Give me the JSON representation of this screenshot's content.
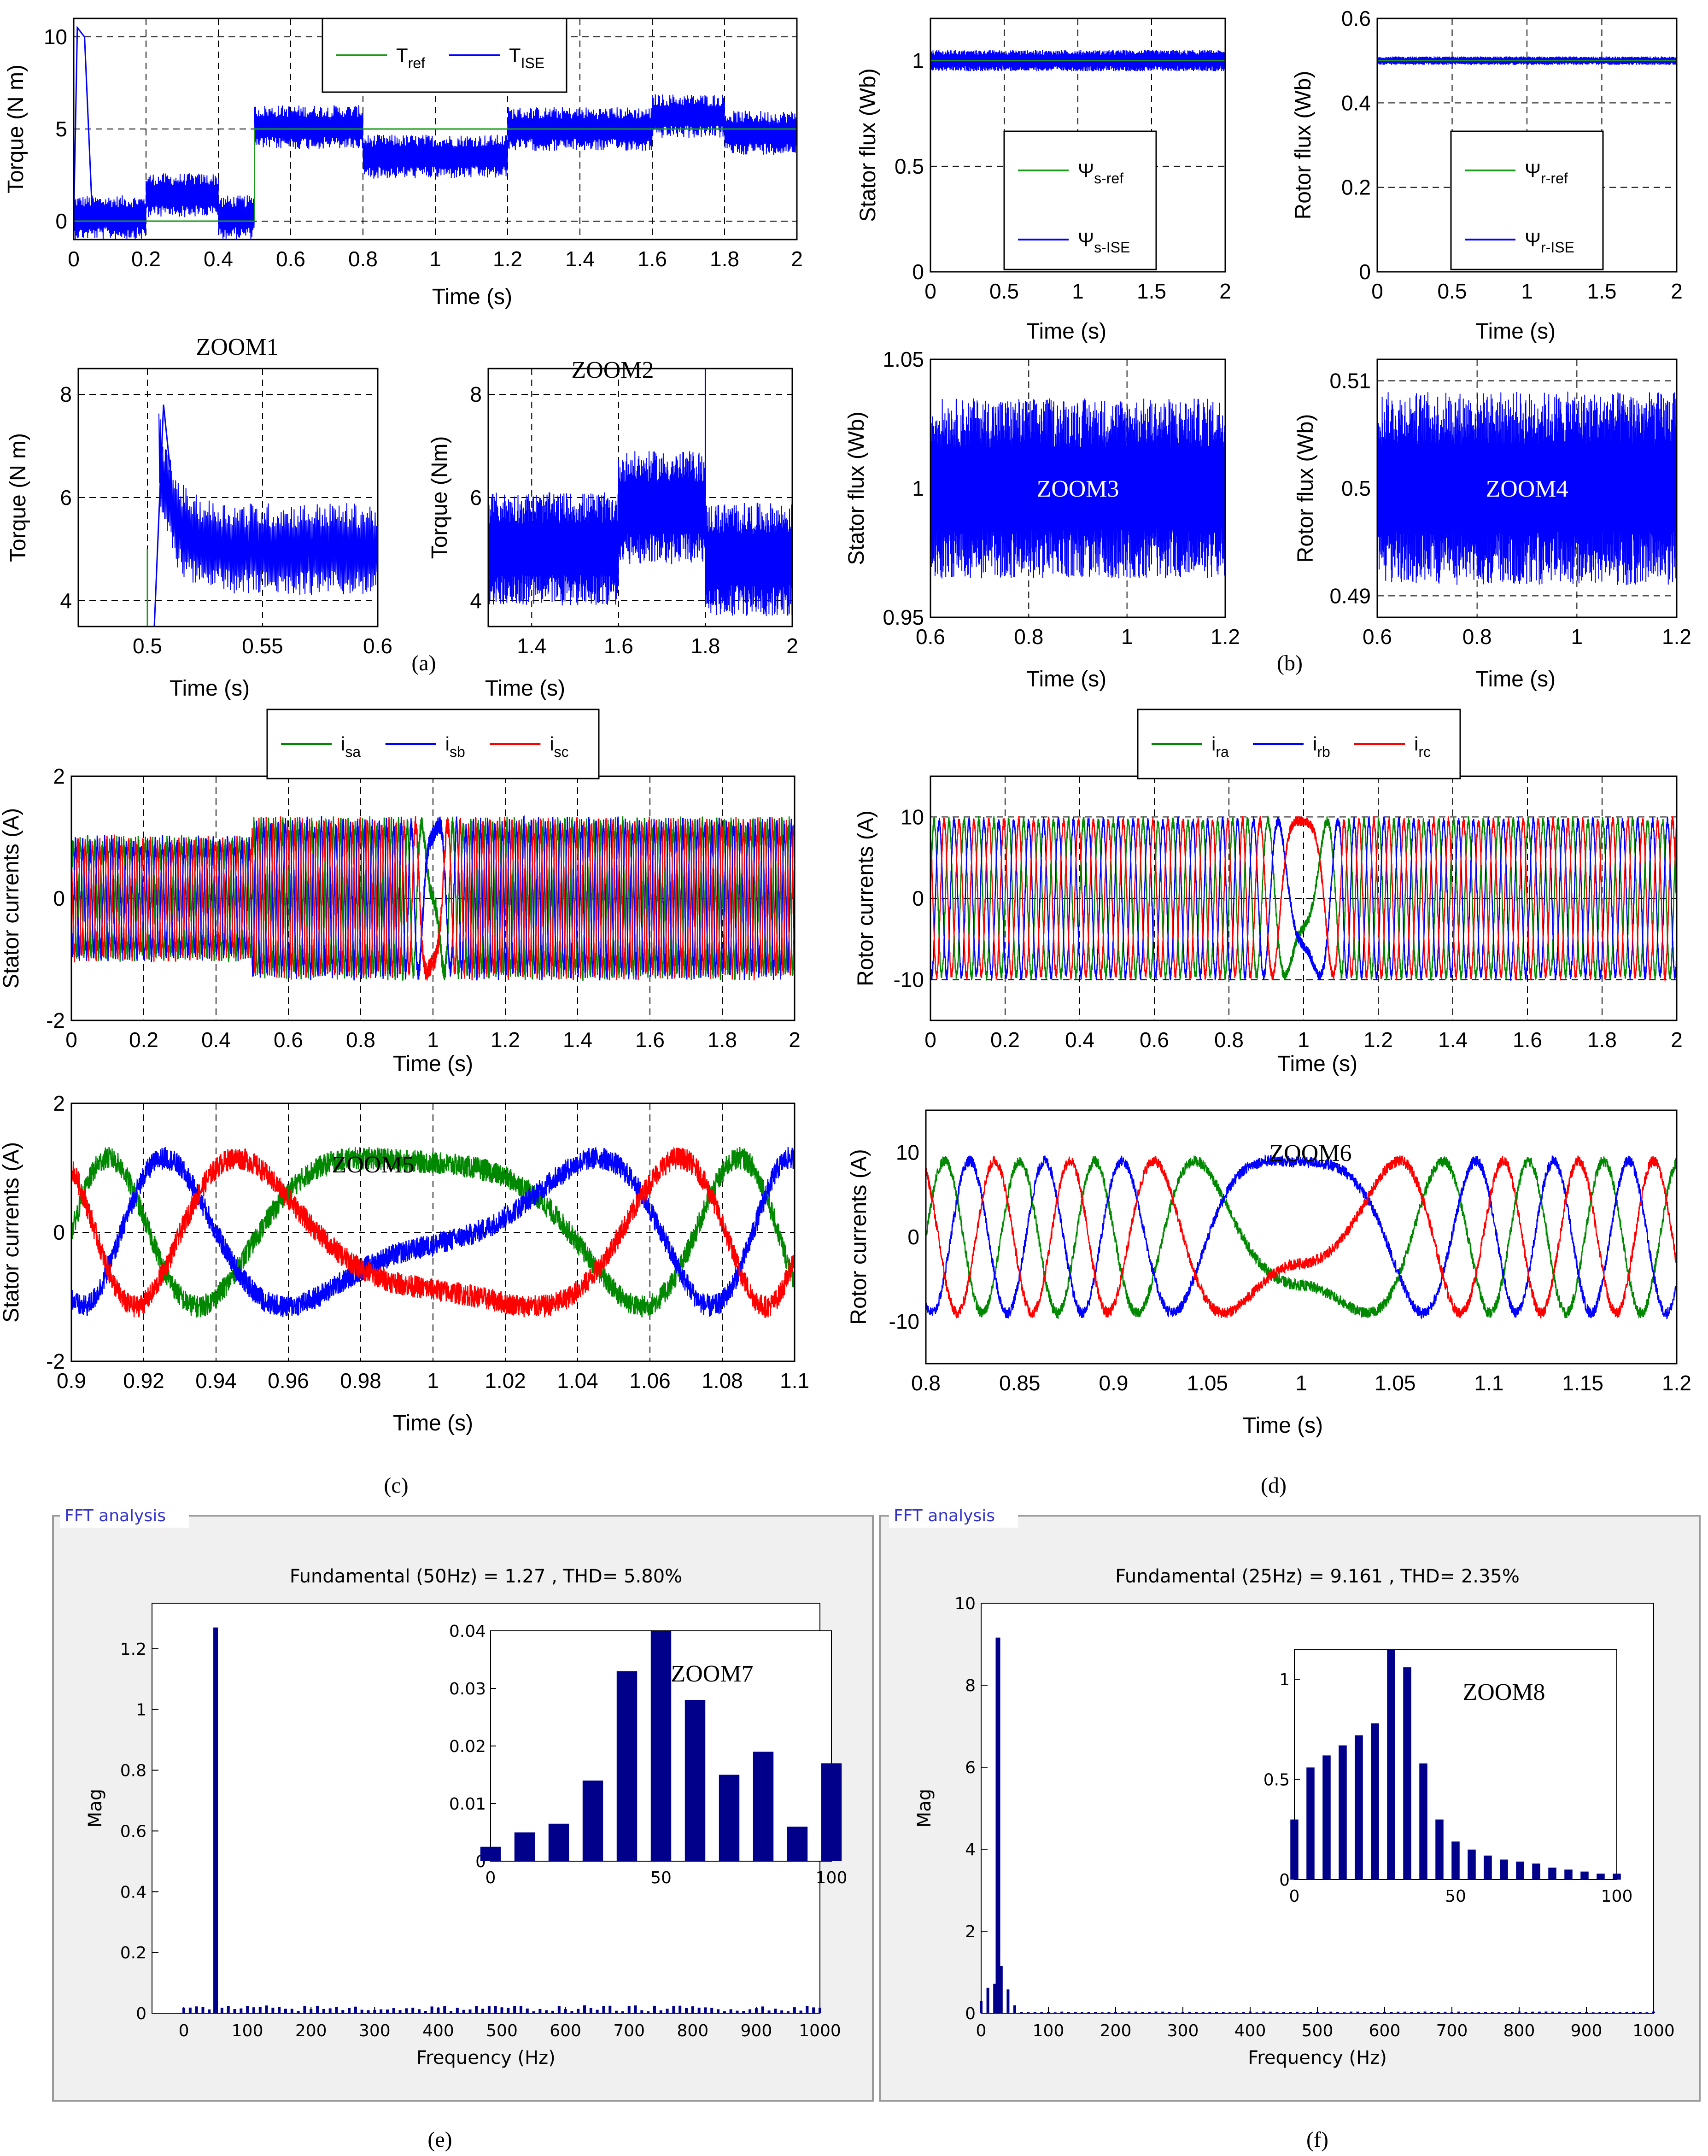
{
  "colors": {
    "ref_green": "#1a9a1a",
    "blue": "#0000ff",
    "red": "#ff0000",
    "green": "#008800",
    "fft_bar": "#00008b",
    "fft_panel_bg": "#f0f0f0",
    "fft_panel_border": "#9a9a9a",
    "fft_label": "#3333cc"
  },
  "panel_captions": [
    "(a)",
    "(b)",
    "(c)",
    "(d)",
    "(e)",
    "(f)"
  ],
  "chart_data": [
    {
      "id": "torque",
      "type": "line",
      "ylabel": "Torque (N m)",
      "xlabel": "Time (s)",
      "xlim": [
        0,
        2
      ],
      "ylim": [
        -1,
        11
      ],
      "xticks": [
        "0",
        "0.2",
        "0.4",
        "0.6",
        "0.8",
        "1",
        "1.2",
        "1.4",
        "1.6",
        "1.8",
        "2"
      ],
      "yticks": [
        "0",
        "5",
        "10"
      ],
      "legend": [
        "T_ref",
        "T_ISE"
      ],
      "series": [
        {
          "name": "T_ref",
          "x": [
            0,
            0.5,
            0.5,
            0.8,
            0.8,
            1.2,
            1.2,
            1.6,
            1.6,
            1.8,
            1.8,
            2
          ],
          "values": [
            0,
            0,
            5,
            5,
            5,
            5,
            5,
            5,
            5,
            5,
            5,
            5
          ]
        },
        {
          "name": "T_ISE",
          "segments": [
            {
              "x": [
                0,
                0.2
              ],
              "center": 0.2,
              "ripple": 1.2
            },
            {
              "x": [
                0.2,
                0.4
              ],
              "center": 1.4,
              "ripple": 1.2
            },
            {
              "x": [
                0.4,
                0.5
              ],
              "center": 0.2,
              "ripple": 1.2
            },
            {
              "x": [
                0.5,
                0.8
              ],
              "center": 5.1,
              "ripple": 1.2
            },
            {
              "x": [
                0.8,
                1.2
              ],
              "center": 3.5,
              "ripple": 1.2
            },
            {
              "x": [
                1.2,
                1.6
              ],
              "center": 5.0,
              "ripple": 1.2
            },
            {
              "x": [
                1.6,
                1.8
              ],
              "center": 5.7,
              "ripple": 1.2
            },
            {
              "x": [
                1.8,
                2.0
              ],
              "center": 4.8,
              "ripple": 1.2
            }
          ]
        }
      ]
    },
    {
      "id": "stator_flux",
      "type": "line",
      "ylabel": "Stator flux (Wb)",
      "xlabel": "Time (s)",
      "xlim": [
        0,
        2
      ],
      "ylim": [
        0,
        1.2
      ],
      "xticks": [
        "0",
        "0.5",
        "1",
        "1.5",
        "2"
      ],
      "yticks": [
        "0",
        "0.5",
        "1"
      ],
      "legend": [
        "Ψ_s-ref",
        "Ψ_s-ISE"
      ],
      "series": [
        {
          "name": "Ψ_s-ref",
          "values": [
            1,
            1
          ]
        },
        {
          "name": "Ψ_s-ISE",
          "center": 1.0,
          "ripple": 0.05
        }
      ]
    },
    {
      "id": "rotor_flux",
      "type": "line",
      "ylabel": "Rotor flux (Wb)",
      "xlabel": "Time (s)",
      "xlim": [
        0,
        2
      ],
      "ylim": [
        0,
        0.6
      ],
      "xticks": [
        "0",
        "0.5",
        "1",
        "1.5",
        "2"
      ],
      "yticks": [
        "0",
        "0.2",
        "0.4",
        "0.6"
      ],
      "legend": [
        "Ψ_r-ref",
        "Ψ_r-ISE"
      ],
      "series": [
        {
          "name": "Ψ_r-ref",
          "values": [
            0.5,
            0.5
          ]
        },
        {
          "name": "Ψ_r-ISE",
          "center": 0.5,
          "ripple": 0.01
        }
      ]
    },
    {
      "id": "zoom1",
      "type": "line",
      "title": "ZOOM1",
      "ylabel": "Torque (N m)",
      "xlabel": "Time (s)",
      "xlim": [
        0.47,
        0.6
      ],
      "ylim": [
        3.5,
        8.5
      ],
      "xticks": [
        "0.5",
        "0.55",
        "0.6"
      ],
      "yticks": [
        "4",
        "6",
        "8"
      ],
      "series": [
        {
          "name": "T_ISE",
          "center": 5.0,
          "ripple": 1.0
        }
      ]
    },
    {
      "id": "zoom2",
      "type": "line",
      "title": "ZOOM2",
      "ylabel": "Torque (Nm)",
      "xlabel": "Time (s)",
      "xlim": [
        1.3,
        2
      ],
      "ylim": [
        3.5,
        8.5
      ],
      "xticks": [
        "1.4",
        "1.6",
        "1.8",
        "2"
      ],
      "yticks": [
        "4",
        "6",
        "8"
      ],
      "series": [
        {
          "name": "T_ISE",
          "center": 5.2,
          "ripple": 1.2
        }
      ]
    },
    {
      "id": "zoom3",
      "type": "line",
      "title": "ZOOM3",
      "ylabel": "Stator flux (Wb)",
      "xlabel": "Time (s)",
      "xlim": [
        0.6,
        1.2
      ],
      "ylim": [
        0.95,
        1.05
      ],
      "xticks": [
        "0.6",
        "0.8",
        "1",
        "1.2"
      ],
      "yticks": [
        "0.95",
        "1",
        "1.05"
      ],
      "series": [
        {
          "name": "Ψ_s-ISE",
          "center": 1.0,
          "ripple": 0.035
        }
      ]
    },
    {
      "id": "zoom4",
      "type": "line",
      "title": "ZOOM4",
      "ylabel": "Rotor flux (Wb)",
      "xlabel": "Time (s)",
      "xlim": [
        0.6,
        1.2
      ],
      "ylim": [
        0.488,
        0.512
      ],
      "xticks": [
        "0.6",
        "0.8",
        "1",
        "1.2"
      ],
      "yticks": [
        "0.49",
        "0.5",
        "0.51"
      ],
      "series": [
        {
          "name": "Ψ_r-ISE",
          "center": 0.5,
          "ripple": 0.009
        }
      ]
    },
    {
      "id": "stator_currents",
      "type": "line",
      "ylabel": "Stator currents (A)",
      "xlabel": "Time (s)",
      "xlim": [
        0,
        2
      ],
      "ylim": [
        -2,
        2
      ],
      "xticks": [
        "0",
        "0.2",
        "0.4",
        "0.6",
        "0.8",
        "1",
        "1.2",
        "1.4",
        "1.6",
        "1.8",
        "2"
      ],
      "yticks": [
        "-2",
        "0",
        "2"
      ],
      "legend": [
        "i_sa",
        "i_sb",
        "i_sc"
      ],
      "series": [
        {
          "name": "i_sa",
          "amplitude": 1.2
        },
        {
          "name": "i_sb",
          "amplitude": 1.2
        },
        {
          "name": "i_sc",
          "amplitude": 1.2
        }
      ]
    },
    {
      "id": "rotor_currents",
      "type": "line",
      "ylabel": "Rotor currents (A)",
      "xlabel": "Time (s)",
      "xlim": [
        0,
        2
      ],
      "ylim": [
        -15,
        15
      ],
      "xticks": [
        "0",
        "0.2",
        "0.4",
        "0.6",
        "0.8",
        "1",
        "1.2",
        "1.4",
        "1.6",
        "1.8",
        "2"
      ],
      "yticks": [
        "-10",
        "0",
        "10"
      ],
      "legend": [
        "i_ra",
        "i_rb",
        "i_rc"
      ],
      "series": [
        {
          "name": "i_ra",
          "amplitude": 9.5
        },
        {
          "name": "i_rb",
          "amplitude": 9.5
        },
        {
          "name": "i_rc",
          "amplitude": 9.5
        }
      ]
    },
    {
      "id": "zoom5",
      "type": "line",
      "title": "ZOOM5",
      "ylabel": "Stator currents (A)",
      "xlabel": "Time (s)",
      "xlim": [
        0.9,
        1.1
      ],
      "ylim": [
        -2,
        2
      ],
      "xticks": [
        "0.9",
        "0.92",
        "0.94",
        "0.96",
        "0.98",
        "1",
        "1.02",
        "1.04",
        "1.06",
        "1.08",
        "1.1"
      ],
      "yticks": [
        "-2",
        "0",
        "2"
      ],
      "series": [
        {
          "name": "i_sa",
          "amplitude": 1.2
        },
        {
          "name": "i_sb",
          "amplitude": 1.2
        },
        {
          "name": "i_sc",
          "amplitude": 1.2
        }
      ]
    },
    {
      "id": "zoom6",
      "type": "line",
      "title": "ZOOM6",
      "ylabel": "Rotor currents (A)",
      "xlabel": "Time (s)",
      "xlim": [
        0.8,
        1.2
      ],
      "ylim": [
        -15,
        15
      ],
      "xticks": [
        "0.8",
        "0.85",
        "0.9",
        "1.05",
        "1",
        "1.05",
        "1.1",
        "1.15",
        "1.2"
      ],
      "yticks": [
        "-10",
        "0",
        "10"
      ],
      "series": [
        {
          "name": "i_ra",
          "amplitude": 9.5
        },
        {
          "name": "i_rb",
          "amplitude": 9.5
        },
        {
          "name": "i_rc",
          "amplitude": 9.5
        }
      ]
    },
    {
      "id": "fft_stator",
      "type": "bar",
      "panel_label": "FFT analysis",
      "title": "Fundamental (50Hz) = 1.27 , THD= 5.80%",
      "ylabel": "Mag",
      "xlabel": "Frequency (Hz)",
      "xlim": [
        -50,
        1000
      ],
      "ylim": [
        0,
        1.35
      ],
      "xticks": [
        "0",
        "100",
        "200",
        "300",
        "400",
        "500",
        "600",
        "700",
        "800",
        "900",
        "1000"
      ],
      "yticks": [
        "0",
        "0.2",
        "0.4",
        "0.6",
        "0.8",
        "1",
        "1.2"
      ],
      "fundamental": {
        "x": 50,
        "value": 1.27
      },
      "inset": {
        "title": "ZOOM7",
        "xlim": [
          0,
          100
        ],
        "ylim": [
          0,
          0.04
        ],
        "xticks": [
          "0",
          "50",
          "100"
        ],
        "yticks": [
          "0",
          "0.01",
          "0.02",
          "0.03",
          "0.04"
        ],
        "x": [
          0,
          10,
          20,
          30,
          40,
          50,
          60,
          70,
          80,
          90,
          100
        ],
        "values": [
          0.0025,
          0.005,
          0.0065,
          0.014,
          0.033,
          0.04,
          0.028,
          0.015,
          0.019,
          0.006,
          0.017
        ]
      }
    },
    {
      "id": "fft_rotor",
      "type": "bar",
      "panel_label": "FFT analysis",
      "title": "Fundamental (25Hz) = 9.161 , THD= 2.35%",
      "ylabel": "Mag",
      "xlabel": "Frequency (Hz)",
      "xlim": [
        0,
        1000
      ],
      "ylim": [
        0,
        10
      ],
      "xticks": [
        "0",
        "100",
        "200",
        "300",
        "400",
        "500",
        "600",
        "700",
        "800",
        "900",
        "1000"
      ],
      "yticks": [
        "0",
        "2",
        "4",
        "6",
        "8",
        "10"
      ],
      "fundamental": {
        "x": 25,
        "value": 9.161
      },
      "inset": {
        "title": "ZOOM8",
        "xlim": [
          0,
          100
        ],
        "ylim": [
          0,
          1.15
        ],
        "xticks": [
          "0",
          "50",
          "100"
        ],
        "yticks": [
          "0",
          "0.5",
          "1"
        ],
        "x": [
          0,
          5,
          10,
          15,
          20,
          25,
          30,
          35,
          40,
          45,
          50,
          55,
          60,
          65,
          70,
          75,
          80,
          85,
          90,
          95,
          100
        ],
        "values": [
          0.3,
          0.56,
          0.62,
          0.67,
          0.72,
          0.78,
          1.15,
          1.06,
          0.58,
          0.3,
          0.19,
          0.15,
          0.12,
          0.1,
          0.09,
          0.08,
          0.06,
          0.05,
          0.04,
          0.03,
          0.03
        ]
      }
    }
  ]
}
